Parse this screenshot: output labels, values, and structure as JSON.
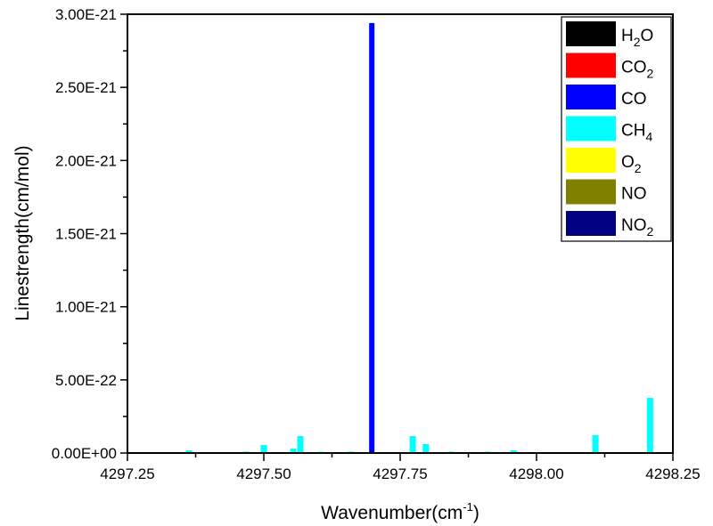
{
  "chart_data": {
    "type": "bar",
    "title": "",
    "xlabel": "Wavenumber(cm⁻¹)",
    "xlabel_main": "Wavenumber(cm",
    "xlabel_sup": "-1",
    "xlabel_close": ")",
    "ylabel": "Linestrength(cm/mol)",
    "xlim": [
      4297.25,
      4298.25
    ],
    "ylim": [
      0,
      3e-21
    ],
    "x_ticks": [
      4297.25,
      4297.5,
      4297.75,
      4298.0,
      4298.25
    ],
    "x_tick_labels": [
      "4297.25",
      "4297.50",
      "4297.75",
      "4298.00",
      "4298.25"
    ],
    "y_ticks": [
      0,
      5e-22,
      1e-21,
      1.5e-21,
      2e-21,
      2.5e-21,
      3e-21
    ],
    "y_tick_labels": [
      "0.00E+00",
      "5.00E-22",
      "1.00E-21",
      "1.50E-21",
      "2.00E-21",
      "2.50E-21",
      "3.00E-21"
    ],
    "grid": false,
    "legend_position": "upper right",
    "legend": [
      {
        "name": "H2O",
        "base": "H",
        "sub": "2",
        "tail": "O",
        "color": "#000000"
      },
      {
        "name": "CO2",
        "base": "CO",
        "sub": "2",
        "tail": "",
        "color": "#ff0000"
      },
      {
        "name": "CO",
        "base": "CO",
        "sub": "",
        "tail": "",
        "color": "#0000ff"
      },
      {
        "name": "CH4",
        "base": "CH",
        "sub": "4",
        "tail": "",
        "color": "#00ffff"
      },
      {
        "name": "O2",
        "base": "O",
        "sub": "2",
        "tail": "",
        "color": "#ffff00"
      },
      {
        "name": "NO",
        "base": "NO",
        "sub": "",
        "tail": "",
        "color": "#808000"
      },
      {
        "name": "NO2",
        "base": "NO",
        "sub": "2",
        "tail": "",
        "color": "#000080"
      }
    ],
    "series": [
      {
        "name": "H2O",
        "x": [],
        "values": []
      },
      {
        "name": "CO2",
        "x": [],
        "values": []
      },
      {
        "name": "CO",
        "x": [
          4297.698
        ],
        "values": [
          2.94e-21
        ]
      },
      {
        "name": "CH4",
        "x": [
          4297.363,
          4297.467,
          4297.5,
          4297.554,
          4297.567,
          4297.605,
          4297.659,
          4297.773,
          4297.797,
          4297.843,
          4297.91,
          4297.958,
          4298.108,
          4298.208
        ],
        "values": [
          1.8e-23,
          6e-24,
          5.5e-23,
          3e-23,
          1.16e-22,
          6e-24,
          6e-24,
          1.16e-22,
          6.1e-23,
          6e-24,
          6e-24,
          1.8e-23,
          1.22e-22,
          3.77e-22
        ]
      },
      {
        "name": "O2",
        "x": [],
        "values": []
      },
      {
        "name": "NO",
        "x": [],
        "values": []
      },
      {
        "name": "NO2",
        "x": [],
        "values": []
      }
    ]
  }
}
